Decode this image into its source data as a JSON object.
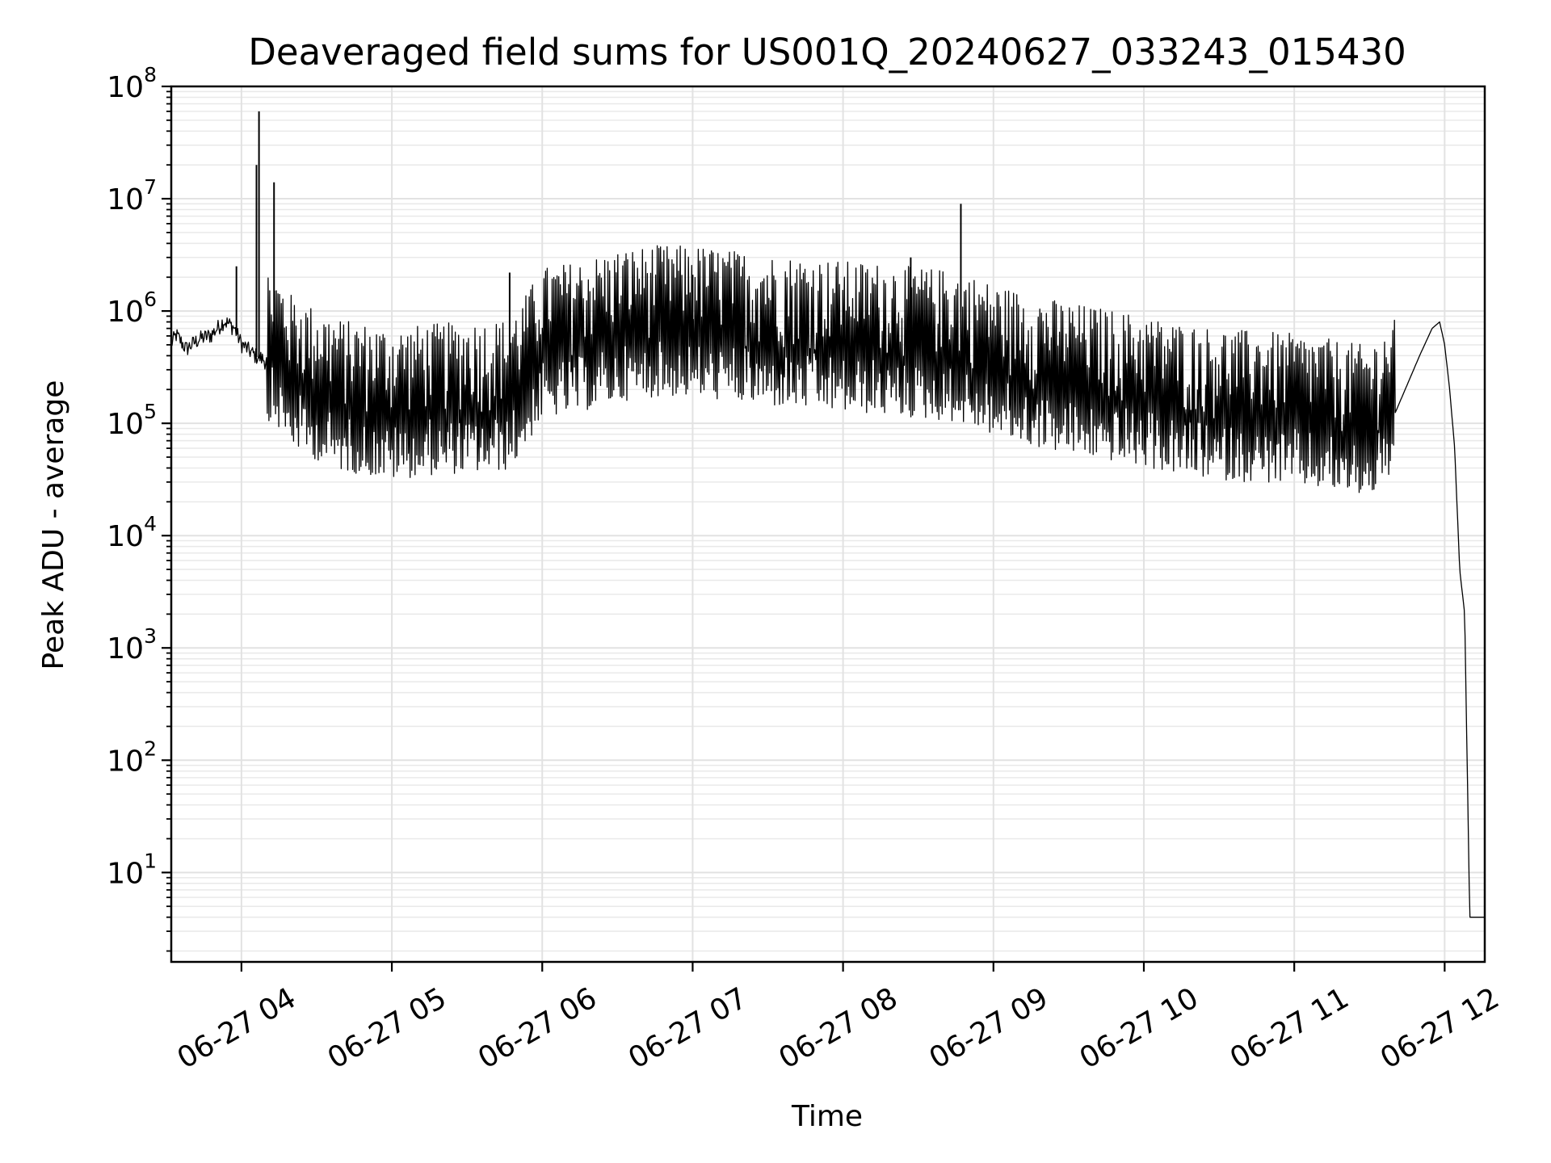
{
  "chart_data": {
    "type": "line",
    "title": "Deaveraged field sums for US001Q_20240627_033243_015430",
    "xlabel": "Time",
    "ylabel": "Peak ADU - average",
    "x_axis": "datetime",
    "y_scale": "log",
    "xlim": [
      "2024-06-27 03:32",
      "2024-06-27 12:16"
    ],
    "ylim": [
      1.6,
      100000000
    ],
    "x_ticks": [
      "06-27 04",
      "06-27 05",
      "06-27 06",
      "06-27 07",
      "06-27 08",
      "06-27 09",
      "06-27 10",
      "06-27 11",
      "06-27 12"
    ],
    "x_tick_times": [
      "2024-06-27 04:00",
      "2024-06-27 05:00",
      "2024-06-27 06:00",
      "2024-06-27 07:00",
      "2024-06-27 08:00",
      "2024-06-27 09:00",
      "2024-06-27 10:00",
      "2024-06-27 11:00",
      "2024-06-27 12:00"
    ],
    "y_ticks": [
      {
        "base": "10",
        "exp": "1"
      },
      {
        "base": "10",
        "exp": "2"
      },
      {
        "base": "10",
        "exp": "3"
      },
      {
        "base": "10",
        "exp": "4"
      },
      {
        "base": "10",
        "exp": "5"
      },
      {
        "base": "10",
        "exp": "6"
      },
      {
        "base": "10",
        "exp": "7"
      },
      {
        "base": "10",
        "exp": "8"
      }
    ],
    "grid": "major and minor",
    "line_color": "#000000",
    "series": [
      {
        "x": [
          "2024-06-27 03:32",
          "2024-06-27 03:34",
          "2024-06-27 03:38",
          "2024-06-27 03:43",
          "2024-06-27 03:48",
          "2024-06-27 03:53",
          "2024-06-27 03:57",
          "2024-06-27 04:00",
          "2024-06-27 04:05",
          "2024-06-27 04:10",
          "2024-06-27 04:14",
          "2024-06-27 04:20",
          "2024-06-27 04:30",
          "2024-06-27 04:40",
          "2024-06-27 04:50",
          "2024-06-27 05:00",
          "2024-06-27 05:15",
          "2024-06-27 05:30",
          "2024-06-27 05:45",
          "2024-06-27 05:50",
          "2024-06-27 06:00",
          "2024-06-27 06:15",
          "2024-06-27 06:30",
          "2024-06-27 06:45",
          "2024-06-27 07:00",
          "2024-06-27 07:15",
          "2024-06-27 07:30",
          "2024-06-27 07:45",
          "2024-06-27 08:00",
          "2024-06-27 08:15",
          "2024-06-27 08:30",
          "2024-06-27 08:45",
          "2024-06-27 09:00",
          "2024-06-27 09:15",
          "2024-06-27 09:30",
          "2024-06-27 09:45",
          "2024-06-27 10:00",
          "2024-06-27 10:15",
          "2024-06-27 10:30",
          "2024-06-27 10:45",
          "2024-06-27 11:00",
          "2024-06-27 11:15",
          "2024-06-27 11:30",
          "2024-06-27 11:40",
          "2024-06-27 11:50",
          "2024-06-27 11:55",
          "2024-06-27 11:58",
          "2024-06-27 12:00",
          "2024-06-27 12:02",
          "2024-06-27 12:04",
          "2024-06-27 12:06",
          "2024-06-27 12:08",
          "2024-06-27 12:10",
          "2024-06-27 12:16"
        ],
        "y": [
          500000,
          600000,
          450000,
          550000,
          600000,
          800000,
          700000,
          500000,
          400000,
          350000,
          300000,
          200000,
          150000,
          120000,
          110000,
          100000,
          110000,
          115000,
          120000,
          150000,
          350000,
          400000,
          500000,
          550000,
          550000,
          500000,
          450000,
          430000,
          400000,
          380000,
          350000,
          330000,
          250000,
          200000,
          170000,
          150000,
          130000,
          110000,
          100000,
          95000,
          90000,
          80000,
          70000,
          120000,
          400000,
          700000,
          800000,
          500000,
          200000,
          60000,
          5000,
          2000,
          4,
          4
        ],
        "spikes": [
          {
            "x": "2024-06-27 03:58",
            "y": 2500000
          },
          {
            "x": "2024-06-27 04:06",
            "y": 20000000
          },
          {
            "x": "2024-06-27 04:07",
            "y": 60000000
          },
          {
            "x": "2024-06-27 04:13",
            "y": 14000000
          },
          {
            "x": "2024-06-27 05:47",
            "y": 2200000
          },
          {
            "x": "2024-06-27 07:00",
            "y": 2100000
          },
          {
            "x": "2024-06-27 08:27",
            "y": 3000000
          },
          {
            "x": "2024-06-27 08:47",
            "y": 9000000
          }
        ]
      }
    ]
  }
}
